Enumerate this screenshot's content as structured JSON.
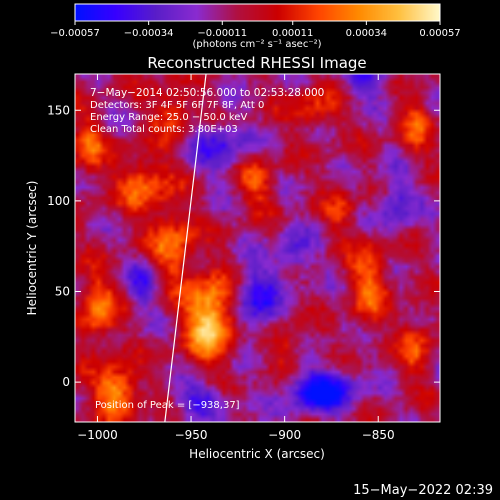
{
  "chart_data": {
    "type": "heatmap",
    "title": "Reconstructed RHESSI Image",
    "xlabel": "Heliocentric X (arcsec)",
    "ylabel": "Heliocentric Y (arcsec)",
    "xlim": [
      -1012,
      -817
    ],
    "ylim": [
      -22,
      170
    ],
    "x_ticks": [
      -1000,
      -950,
      -900,
      -850
    ],
    "x_tick_labels": [
      "−1000",
      "−950",
      "−900",
      "−850"
    ],
    "y_ticks": [
      0,
      50,
      100,
      150
    ],
    "y_tick_labels": [
      "0",
      "50",
      "100",
      "150"
    ],
    "colorbar": {
      "min": -0.00057,
      "max": 0.00057,
      "ticks": [
        -0.00057,
        -0.00034,
        -0.00011,
        0.00011,
        0.00034,
        0.00057
      ],
      "tick_labels": [
        "−0.00057",
        "−0.00034",
        "−0.00011",
        "0.00011",
        "0.00034",
        "0.00057"
      ],
      "units": "(photons cm⁻² s⁻¹ asec⁻²)",
      "colors": [
        "#0010ff",
        "#3800ff",
        "#5a1ec8",
        "#8a2bd0",
        "#b01040",
        "#cc0000",
        "#ff4400",
        "#ff8a00",
        "#ffc040",
        "#fff8c8"
      ]
    },
    "annotations": [
      "7−May−2014 02:50:56.000 to 02:53:28.000",
      "Detectors: 3F 4F 5F 6F 7F 8F, Att 0",
      "Energy Range: 25.0 − 50.0 keV",
      "Clean    Total counts: 3.80E+03"
    ],
    "peak_label": "Position of Peak = [−938,37]",
    "peak": [
      -938,
      37
    ],
    "limb_line": [
      [
        -942,
        170
      ],
      [
        -964,
        -22
      ]
    ],
    "bright_features": [
      {
        "x": -940,
        "y": 35,
        "amp": 1.0,
        "sx": 9,
        "sy": 16
      },
      {
        "x": -990,
        "y": -5,
        "amp": 0.8,
        "sx": 8,
        "sy": 10
      },
      {
        "x": -960,
        "y": 75,
        "amp": 0.6,
        "sx": 8,
        "sy": 14
      },
      {
        "x": -975,
        "y": 110,
        "amp": 0.55,
        "sx": 10,
        "sy": 12
      },
      {
        "x": -1000,
        "y": 40,
        "amp": 0.6,
        "sx": 7,
        "sy": 14
      },
      {
        "x": -1005,
        "y": 130,
        "amp": 0.5,
        "sx": 6,
        "sy": 12
      },
      {
        "x": -915,
        "y": 110,
        "amp": 0.45,
        "sx": 7,
        "sy": 10
      },
      {
        "x": -855,
        "y": 55,
        "amp": 0.55,
        "sx": 7,
        "sy": 16
      },
      {
        "x": -830,
        "y": 20,
        "amp": 0.45,
        "sx": 6,
        "sy": 12
      },
      {
        "x": -885,
        "y": 150,
        "amp": 0.4,
        "sx": 9,
        "sy": 8
      },
      {
        "x": -960,
        "y": 150,
        "amp": 0.45,
        "sx": 8,
        "sy": 10
      },
      {
        "x": -830,
        "y": 140,
        "amp": 0.4,
        "sx": 6,
        "sy": 14
      },
      {
        "x": -900,
        "y": 20,
        "amp": 0.35,
        "sx": 7,
        "sy": 8
      },
      {
        "x": -870,
        "y": 95,
        "amp": 0.3,
        "sx": 6,
        "sy": 10
      }
    ],
    "dark_features": [
      {
        "x": -880,
        "y": -5,
        "amp": 0.9,
        "sx": 12,
        "sy": 8
      },
      {
        "x": -915,
        "y": 45,
        "amp": 0.6,
        "sx": 8,
        "sy": 14
      },
      {
        "x": -855,
        "y": 170,
        "amp": 0.55,
        "sx": 8,
        "sy": 8
      },
      {
        "x": -935,
        "y": 130,
        "amp": 0.5,
        "sx": 10,
        "sy": 10
      },
      {
        "x": -945,
        "y": -10,
        "amp": 0.55,
        "sx": 10,
        "sy": 6
      },
      {
        "x": -975,
        "y": 55,
        "amp": 0.45,
        "sx": 6,
        "sy": 10
      },
      {
        "x": -840,
        "y": 100,
        "amp": 0.45,
        "sx": 7,
        "sy": 12
      },
      {
        "x": -895,
        "y": 70,
        "amp": 0.4,
        "sx": 7,
        "sy": 10
      }
    ]
  },
  "footer": {
    "timestamp": "15−May−2022 02:39"
  }
}
